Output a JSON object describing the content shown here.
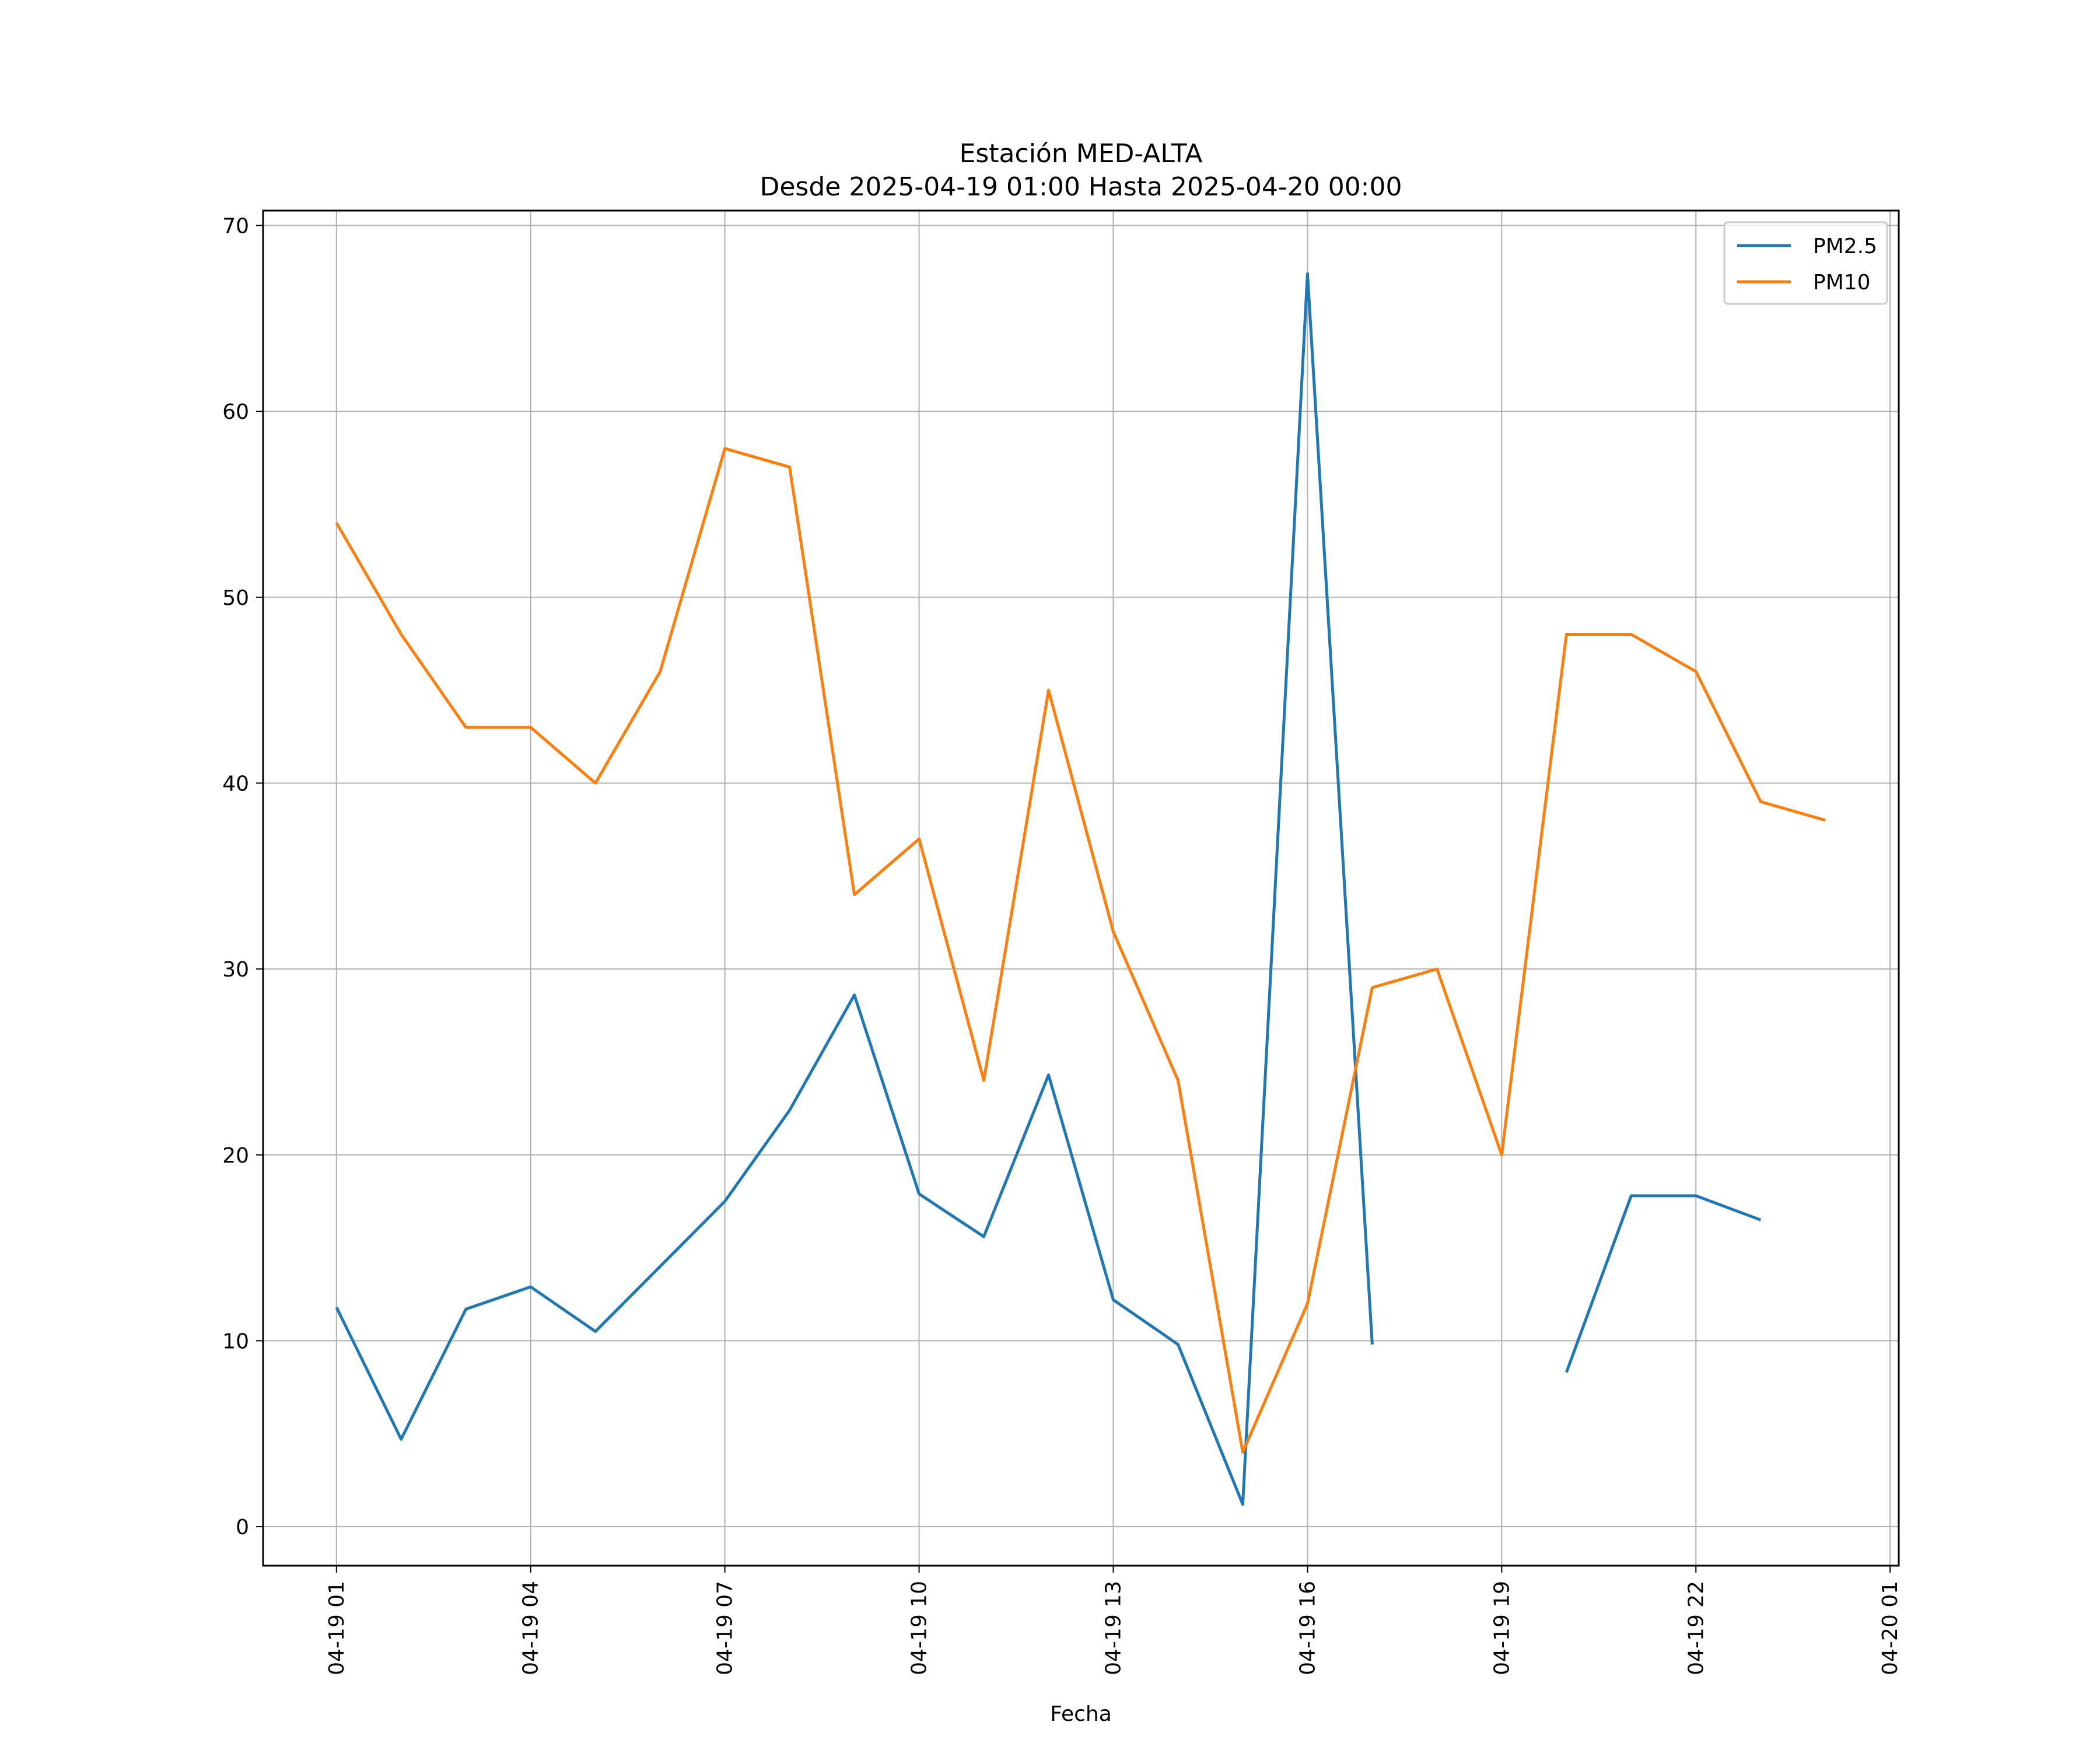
{
  "chart_data": {
    "type": "line",
    "title": "Estación MED-ALTA",
    "subtitle": "Desde 2025-04-19 01:00 Hasta 2025-04-20 00:00",
    "xlabel": "Fecha",
    "ylabel": "",
    "xlim": [
      "2025-04-18 23:52",
      "2025-04-20 01:08"
    ],
    "ylim": [
      -2.1,
      70.8
    ],
    "x_ticks": [
      {
        "value": "2025-04-19 01:00",
        "label": "04-19 01"
      },
      {
        "value": "2025-04-19 04:00",
        "label": "04-19 04"
      },
      {
        "value": "2025-04-19 07:00",
        "label": "04-19 07"
      },
      {
        "value": "2025-04-19 10:00",
        "label": "04-19 10"
      },
      {
        "value": "2025-04-19 13:00",
        "label": "04-19 13"
      },
      {
        "value": "2025-04-19 16:00",
        "label": "04-19 16"
      },
      {
        "value": "2025-04-19 19:00",
        "label": "04-19 19"
      },
      {
        "value": "2025-04-19 22:00",
        "label": "04-19 22"
      },
      {
        "value": "2025-04-20 01:00",
        "label": "04-20 01"
      }
    ],
    "y_ticks": [
      0,
      10,
      20,
      30,
      40,
      50,
      60,
      70
    ],
    "grid": true,
    "legend_position": "top-right",
    "x": [
      "2025-04-19 01:00",
      "2025-04-19 02:00",
      "2025-04-19 03:00",
      "2025-04-19 04:00",
      "2025-04-19 05:00",
      "2025-04-19 06:00",
      "2025-04-19 07:00",
      "2025-04-19 08:00",
      "2025-04-19 09:00",
      "2025-04-19 10:00",
      "2025-04-19 11:00",
      "2025-04-19 12:00",
      "2025-04-19 13:00",
      "2025-04-19 14:00",
      "2025-04-19 15:00",
      "2025-04-19 16:00",
      "2025-04-19 17:00",
      "2025-04-19 18:00",
      "2025-04-19 19:00",
      "2025-04-19 20:00",
      "2025-04-19 21:00",
      "2025-04-19 22:00",
      "2025-04-19 23:00",
      "2025-04-20 00:00"
    ],
    "series": [
      {
        "name": "PM2.5",
        "color": "#1f77b4",
        "values": [
          11.8,
          4.7,
          11.7,
          12.9,
          10.5,
          14.0,
          17.5,
          22.4,
          28.6,
          17.9,
          15.6,
          24.3,
          12.2,
          9.8,
          1.2,
          67.4,
          9.8,
          null,
          null,
          8.3,
          17.8,
          17.8,
          16.5,
          null
        ]
      },
      {
        "name": "PM10",
        "color": "#ff7f0e",
        "values": [
          54,
          48,
          43,
          43,
          40,
          46,
          58,
          57,
          34,
          37,
          24,
          45,
          32,
          24,
          4,
          12,
          29,
          30,
          20,
          48,
          48,
          46,
          39,
          38
        ]
      }
    ]
  }
}
